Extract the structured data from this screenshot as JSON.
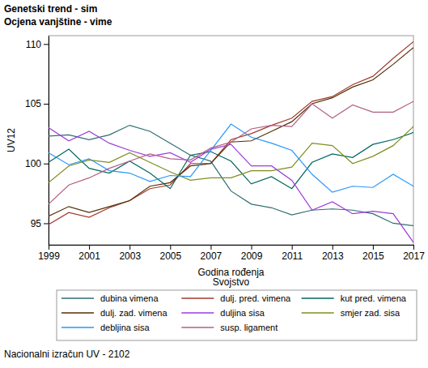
{
  "chart_data": {
    "type": "line",
    "title": "Genetski trend - sim",
    "subtitle": "Ocjena vanjštine - vime",
    "x_label": "Godina rođenja",
    "y_label": "UV12",
    "legend_title": "Svojstvo",
    "footnote": "Nacionalni izračun UV - 2102",
    "x": [
      1999,
      2000,
      2001,
      2002,
      2003,
      2004,
      2005,
      2006,
      2007,
      2008,
      2009,
      2010,
      2011,
      2012,
      2013,
      2014,
      2015,
      2016,
      2017
    ],
    "xlim": [
      1999,
      2017
    ],
    "xticks": [
      1999,
      2001,
      2003,
      2005,
      2007,
      2009,
      2011,
      2013,
      2015,
      2017
    ],
    "ylim": [
      93.2,
      110.7
    ],
    "yticks": [
      95,
      100,
      105,
      110
    ],
    "legend": "bottom",
    "grid": false,
    "series": [
      {
        "name": "dubina vimena",
        "color": "#2e6f6f",
        "values": [
          102.3,
          102.4,
          102.0,
          102.4,
          103.2,
          102.7,
          101.7,
          100.7,
          100.2,
          97.7,
          96.6,
          96.3,
          95.7,
          96.1,
          96.2,
          96.1,
          95.8,
          95.0,
          94.8
        ]
      },
      {
        "name": "dulj. pred. vimena",
        "color": "#a23a2e",
        "values": [
          94.9,
          95.9,
          95.5,
          96.3,
          96.9,
          97.9,
          98.2,
          100.0,
          100.0,
          102.0,
          102.5,
          103.2,
          103.8,
          105.2,
          105.6,
          106.6,
          107.3,
          108.8,
          110.2
        ]
      },
      {
        "name": "kut pred. vimena",
        "color": "#01665e",
        "values": [
          100.1,
          101.2,
          99.6,
          99.2,
          100.2,
          99.2,
          97.9,
          100.7,
          101.0,
          100.2,
          98.3,
          98.9,
          97.9,
          100.1,
          100.8,
          100.5,
          101.6,
          102.0,
          102.6
        ]
      },
      {
        "name": "dulj. zad. vimena",
        "color": "#543005",
        "values": [
          95.6,
          96.4,
          95.9,
          96.4,
          96.9,
          98.1,
          98.4,
          99.8,
          100.0,
          101.8,
          101.9,
          102.7,
          103.5,
          105.0,
          105.5,
          106.4,
          107.0,
          108.3,
          109.7
        ]
      },
      {
        "name": "duljina sisa",
        "color": "#9d3cdb",
        "values": [
          103.0,
          101.9,
          102.7,
          101.7,
          101.1,
          100.6,
          100.9,
          100.1,
          101.2,
          101.6,
          99.8,
          99.8,
          98.6,
          96.1,
          96.8,
          95.8,
          96.0,
          95.8,
          93.4
        ]
      },
      {
        "name": "smjer zad. sisa",
        "color": "#7f8e1f",
        "values": [
          98.4,
          99.8,
          100.3,
          100.1,
          100.9,
          100.1,
          99.3,
          98.6,
          98.8,
          98.8,
          99.4,
          99.4,
          99.7,
          101.7,
          101.5,
          100.0,
          100.6,
          101.5,
          103.1
        ]
      },
      {
        "name": "debljina sisa",
        "color": "#2597fa",
        "values": [
          100.9,
          99.9,
          100.4,
          99.4,
          99.2,
          98.5,
          99.0,
          98.9,
          101.1,
          103.3,
          102.2,
          101.7,
          101.1,
          99.1,
          97.6,
          98.1,
          98.0,
          99.1,
          98.1
        ]
      },
      {
        "name": "susp. ligament",
        "color": "#b26084",
        "values": [
          96.6,
          98.2,
          98.8,
          99.6,
          100.2,
          100.8,
          100.4,
          100.3,
          101.3,
          101.8,
          102.9,
          103.2,
          103.1,
          105.0,
          103.8,
          104.9,
          104.3,
          104.3,
          105.2
        ]
      }
    ]
  }
}
